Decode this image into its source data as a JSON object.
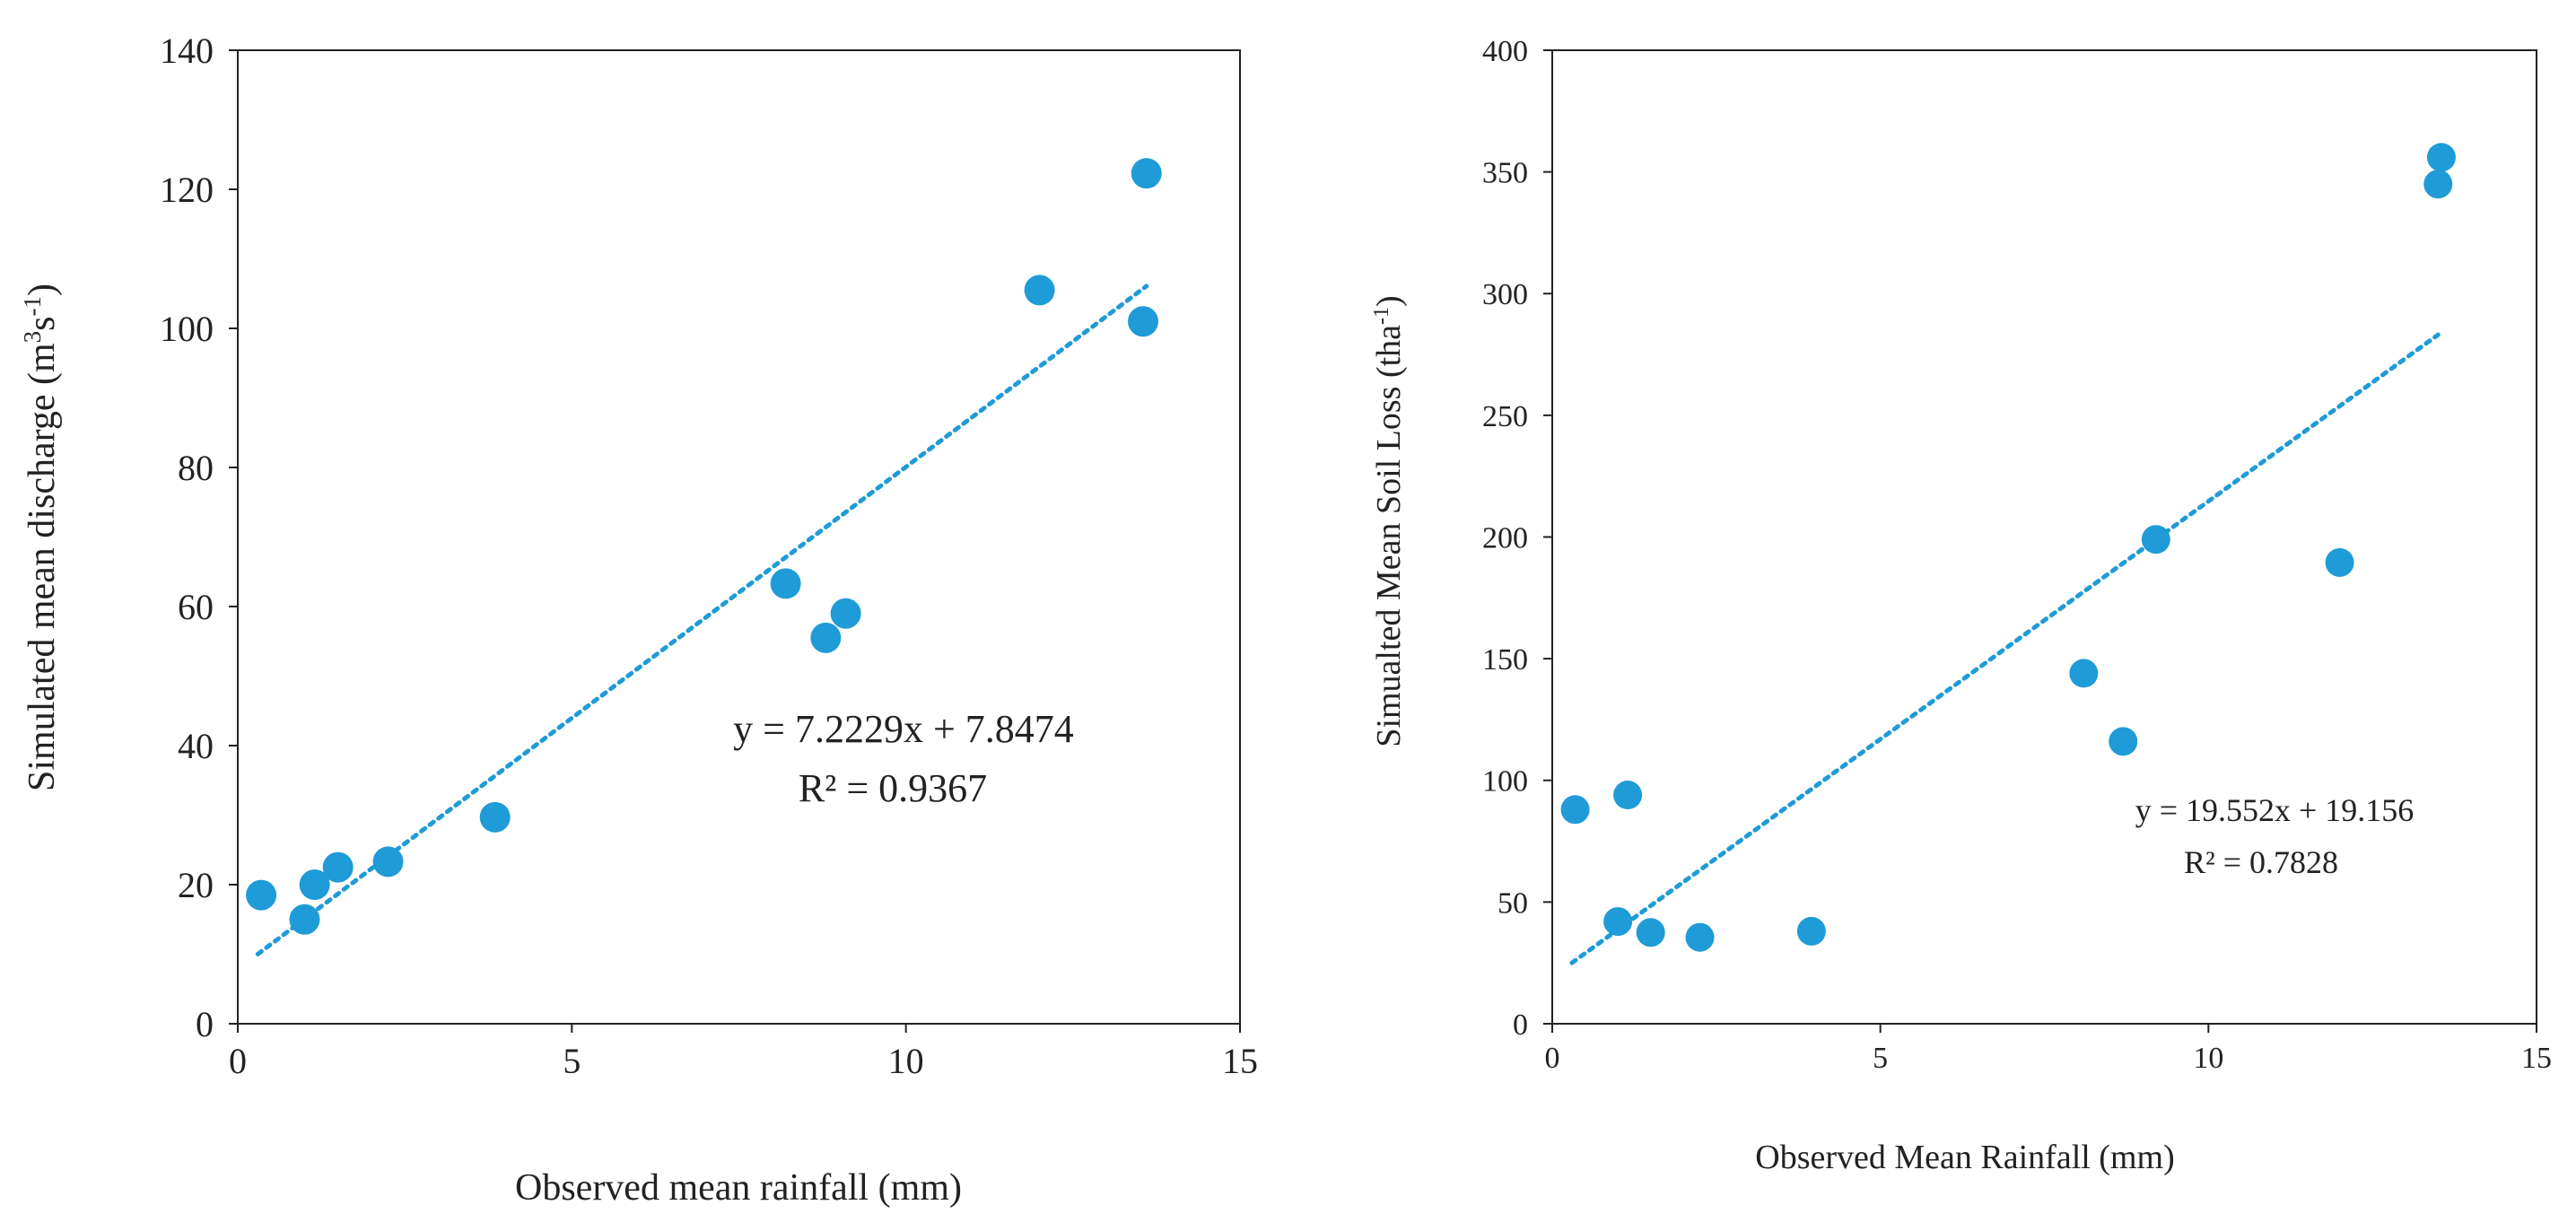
{
  "chart_data": [
    {
      "type": "scatter",
      "xlabel": "Observed mean rainfall (mm)",
      "ylabel_main": "Simulated mean discharge  (m",
      "ylabel_sup1": "3",
      "ylabel_mid": "s",
      "ylabel_sup2": "-1",
      "ylabel_end": ")",
      "xlim": [
        0,
        15
      ],
      "ylim": [
        0,
        140
      ],
      "xticks": [
        0,
        5,
        10,
        15
      ],
      "yticks": [
        0,
        20,
        40,
        60,
        80,
        100,
        120,
        140
      ],
      "grid": false,
      "marker_color": "#1f9bd7",
      "points": [
        {
          "x": 0.35,
          "y": 18.5
        },
        {
          "x": 1.0,
          "y": 15.0
        },
        {
          "x": 1.15,
          "y": 20.0
        },
        {
          "x": 1.5,
          "y": 22.5
        },
        {
          "x": 2.25,
          "y": 23.3
        },
        {
          "x": 3.85,
          "y": 29.7
        },
        {
          "x": 8.2,
          "y": 63.3
        },
        {
          "x": 8.8,
          "y": 55.5
        },
        {
          "x": 9.1,
          "y": 59.0
        },
        {
          "x": 12.0,
          "y": 105.5
        },
        {
          "x": 13.55,
          "y": 101.0
        },
        {
          "x": 13.6,
          "y": 122.3
        }
      ],
      "trendline": {
        "slope": 7.2229,
        "intercept": 7.8474,
        "x_range": [
          0.3,
          13.6
        ],
        "style": "dotted"
      },
      "equation": "y = 7.2229x + 7.8474",
      "r_squared": "R² = 0.9367"
    },
    {
      "type": "scatter",
      "xlabel": "Observed Mean Rainfall (mm)",
      "ylabel_main": "Simualted Mean Soil Loss (tha",
      "ylabel_sup": "-1",
      "ylabel_end": ")",
      "xlim": [
        0,
        15
      ],
      "ylim": [
        0,
        400
      ],
      "xticks": [
        0,
        5,
        10,
        15
      ],
      "yticks": [
        0,
        50,
        100,
        150,
        200,
        250,
        300,
        350,
        400
      ],
      "grid": false,
      "marker_color": "#1f9bd7",
      "points": [
        {
          "x": 0.35,
          "y": 88.0
        },
        {
          "x": 1.0,
          "y": 42.0
        },
        {
          "x": 1.15,
          "y": 94.0
        },
        {
          "x": 1.5,
          "y": 37.5
        },
        {
          "x": 2.25,
          "y": 35.5
        },
        {
          "x": 3.95,
          "y": 38.0
        },
        {
          "x": 8.1,
          "y": 144.0
        },
        {
          "x": 8.7,
          "y": 116.0
        },
        {
          "x": 9.2,
          "y": 199.0
        },
        {
          "x": 12.0,
          "y": 189.5
        },
        {
          "x": 13.5,
          "y": 345.0
        },
        {
          "x": 13.55,
          "y": 356.0
        }
      ],
      "trendline": {
        "slope": 19.552,
        "intercept": 19.156,
        "x_range": [
          0.3,
          13.5
        ],
        "style": "dotted"
      },
      "equation": "y = 19.552x + 19.156",
      "r_squared": "R² = 0.7828"
    }
  ]
}
